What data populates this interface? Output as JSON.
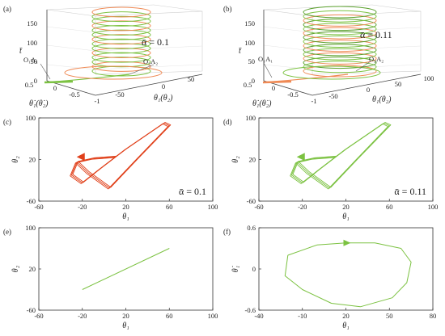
{
  "colors": {
    "orange": "#e0401a",
    "orange_light": "#ef8a55",
    "green": "#7cc242",
    "green_dark": "#5aa02c",
    "axis": "#333333",
    "grid": "#d9d9d9"
  },
  "panels_3d": [
    {
      "id": "a",
      "label": "(a)",
      "annotation": "ᾱ = 0.1",
      "zlabel": "t̄",
      "xlabel": "θ̇₁(θ̇₂)",
      "ylabel": "θ₁(θ₂)",
      "zticks": [
        "0",
        "50",
        "100",
        "150"
      ],
      "xticks": [
        "0.5",
        "0",
        "-0.5",
        "-1"
      ],
      "yticks": [
        "-50",
        "0",
        "50"
      ],
      "callout_left": "O₁A₁",
      "callout_right": "O₂A₂"
    },
    {
      "id": "b",
      "label": "(b)",
      "annotation": "ᾱ = 0.11",
      "zlabel": "t̄",
      "xlabel": "θ̇₁(θ̇₂)",
      "ylabel": "θ₁(θ₂)",
      "zticks": [
        "0",
        "50",
        "100",
        "150"
      ],
      "xticks": [
        "0.5",
        "0",
        "-0.5",
        "-1"
      ],
      "yticks": [
        "-50",
        "0",
        "50",
        "100"
      ],
      "callout_left": "O₁A₁",
      "callout_right": "O₂A₂"
    }
  ],
  "chart_data": [
    {
      "id": "c",
      "label": "(c)",
      "type": "line",
      "annotation": "ᾱ = 0.1",
      "xlabel": "θ₁",
      "ylabel": "θ₂",
      "xlim": [
        -60,
        100
      ],
      "ylim": [
        -60,
        100
      ],
      "xticks": [
        "-60",
        "-20",
        "20",
        "60",
        "100"
      ],
      "yticks": [
        "-60",
        "20",
        "100"
      ],
      "series": [
        {
          "color": "#e0401a",
          "desc": "phase trajectory θ2 vs θ1",
          "points": [
            [
              -25,
              15
            ],
            [
              -15,
              -5
            ],
            [
              5,
              -35
            ],
            [
              30,
              20
            ],
            [
              60,
              85
            ],
            [
              55,
              90
            ],
            [
              20,
              40
            ],
            [
              -5,
              0
            ],
            [
              -20,
              -25
            ],
            [
              -30,
              -10
            ],
            [
              -25,
              15
            ],
            [
              -10,
              22
            ],
            [
              10,
              25
            ]
          ]
        }
      ]
    },
    {
      "id": "d",
      "label": "(d)",
      "type": "line",
      "annotation": "ᾱ = 0.11",
      "xlabel": "θ₁",
      "ylabel": "θ₂",
      "xlim": [
        -60,
        100
      ],
      "ylim": [
        -60,
        100
      ],
      "xticks": [
        "-60",
        "-20",
        "20",
        "60",
        "100"
      ],
      "yticks": [
        "-60",
        "20",
        "100"
      ],
      "series": [
        {
          "color": "#7cc242",
          "desc": "phase trajectory θ2 vs θ1",
          "points": [
            [
              -25,
              15
            ],
            [
              -15,
              -5
            ],
            [
              5,
              -35
            ],
            [
              30,
              20
            ],
            [
              60,
              85
            ],
            [
              55,
              90
            ],
            [
              20,
              40
            ],
            [
              -5,
              0
            ],
            [
              -20,
              -25
            ],
            [
              -30,
              -10
            ],
            [
              -25,
              15
            ],
            [
              -10,
              22
            ],
            [
              10,
              25
            ]
          ]
        }
      ]
    },
    {
      "id": "e",
      "label": "(e)",
      "type": "line",
      "annotation": "",
      "xlabel": "θ₁",
      "ylabel": "θ₂",
      "xlim": [
        -60,
        100
      ],
      "ylim": [
        -60,
        100
      ],
      "xticks": [
        "-60",
        "-20",
        "20",
        "60",
        "100"
      ],
      "yticks": [
        "-60",
        "20",
        "100"
      ],
      "series": [
        {
          "color": "#7cc242",
          "desc": "θ2 vs θ1 in-phase line",
          "points": [
            [
              -20,
              -20
            ],
            [
              60,
              60
            ]
          ]
        }
      ]
    },
    {
      "id": "f",
      "label": "(f)",
      "type": "line",
      "annotation": "",
      "xlabel": "θ₁",
      "ylabel": "θ̇₁",
      "xlim": [
        -40,
        80
      ],
      "ylim": [
        -0.6,
        0.6
      ],
      "xticks": [
        "-40",
        "-10",
        "20",
        "50",
        "80"
      ],
      "yticks": [
        "-0.6",
        "0",
        "0.6"
      ],
      "series": [
        {
          "color": "#7cc242",
          "desc": "phase portrait θ̇1 vs θ1",
          "points": [
            [
              -20,
              0.2
            ],
            [
              0,
              0.35
            ],
            [
              20,
              0.38
            ],
            [
              40,
              0.38
            ],
            [
              58,
              0.3
            ],
            [
              65,
              0.1
            ],
            [
              62,
              -0.2
            ],
            [
              52,
              -0.42
            ],
            [
              30,
              -0.55
            ],
            [
              10,
              -0.5
            ],
            [
              -10,
              -0.3
            ],
            [
              -22,
              -0.1
            ],
            [
              -20,
              0.2
            ]
          ]
        }
      ]
    }
  ]
}
